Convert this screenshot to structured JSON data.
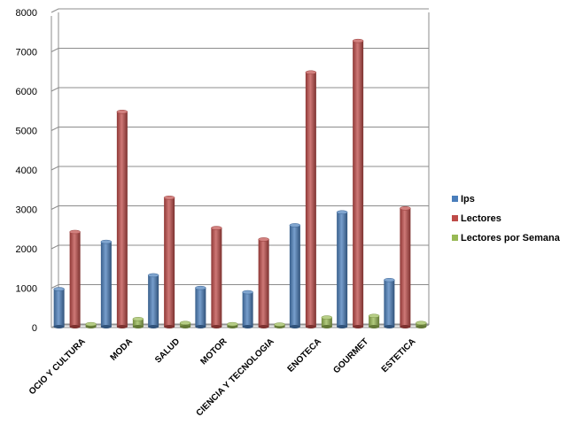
{
  "chart_data": {
    "type": "bar",
    "categories": [
      "OCIO Y CULTURA",
      "MODA",
      "SALUD",
      "MOTOR",
      "CIENCIA Y TECNOLOGIA",
      "ENOTECA",
      "GOURMET",
      "ESTETICA"
    ],
    "series": [
      {
        "name": "Ips",
        "color": "#4a7ebb",
        "values": [
          1000,
          2200,
          1350,
          1030,
          920,
          2620,
          2950,
          1230
        ]
      },
      {
        "name": "Lectores",
        "color": "#be4b48",
        "values": [
          2450,
          5500,
          3320,
          2550,
          2260,
          6500,
          7300,
          3050
        ]
      },
      {
        "name": "Lectores por Semana",
        "color": "#98b954",
        "values": [
          110,
          240,
          140,
          110,
          100,
          280,
          320,
          140
        ]
      }
    ],
    "yticks": [
      "0",
      "1000",
      "2000",
      "3000",
      "4000",
      "5000",
      "6000",
      "7000",
      "8000"
    ],
    "ylim": [
      0,
      8000
    ],
    "grid": true,
    "legend_position": "right",
    "title": "",
    "xlabel": "",
    "ylabel": ""
  }
}
